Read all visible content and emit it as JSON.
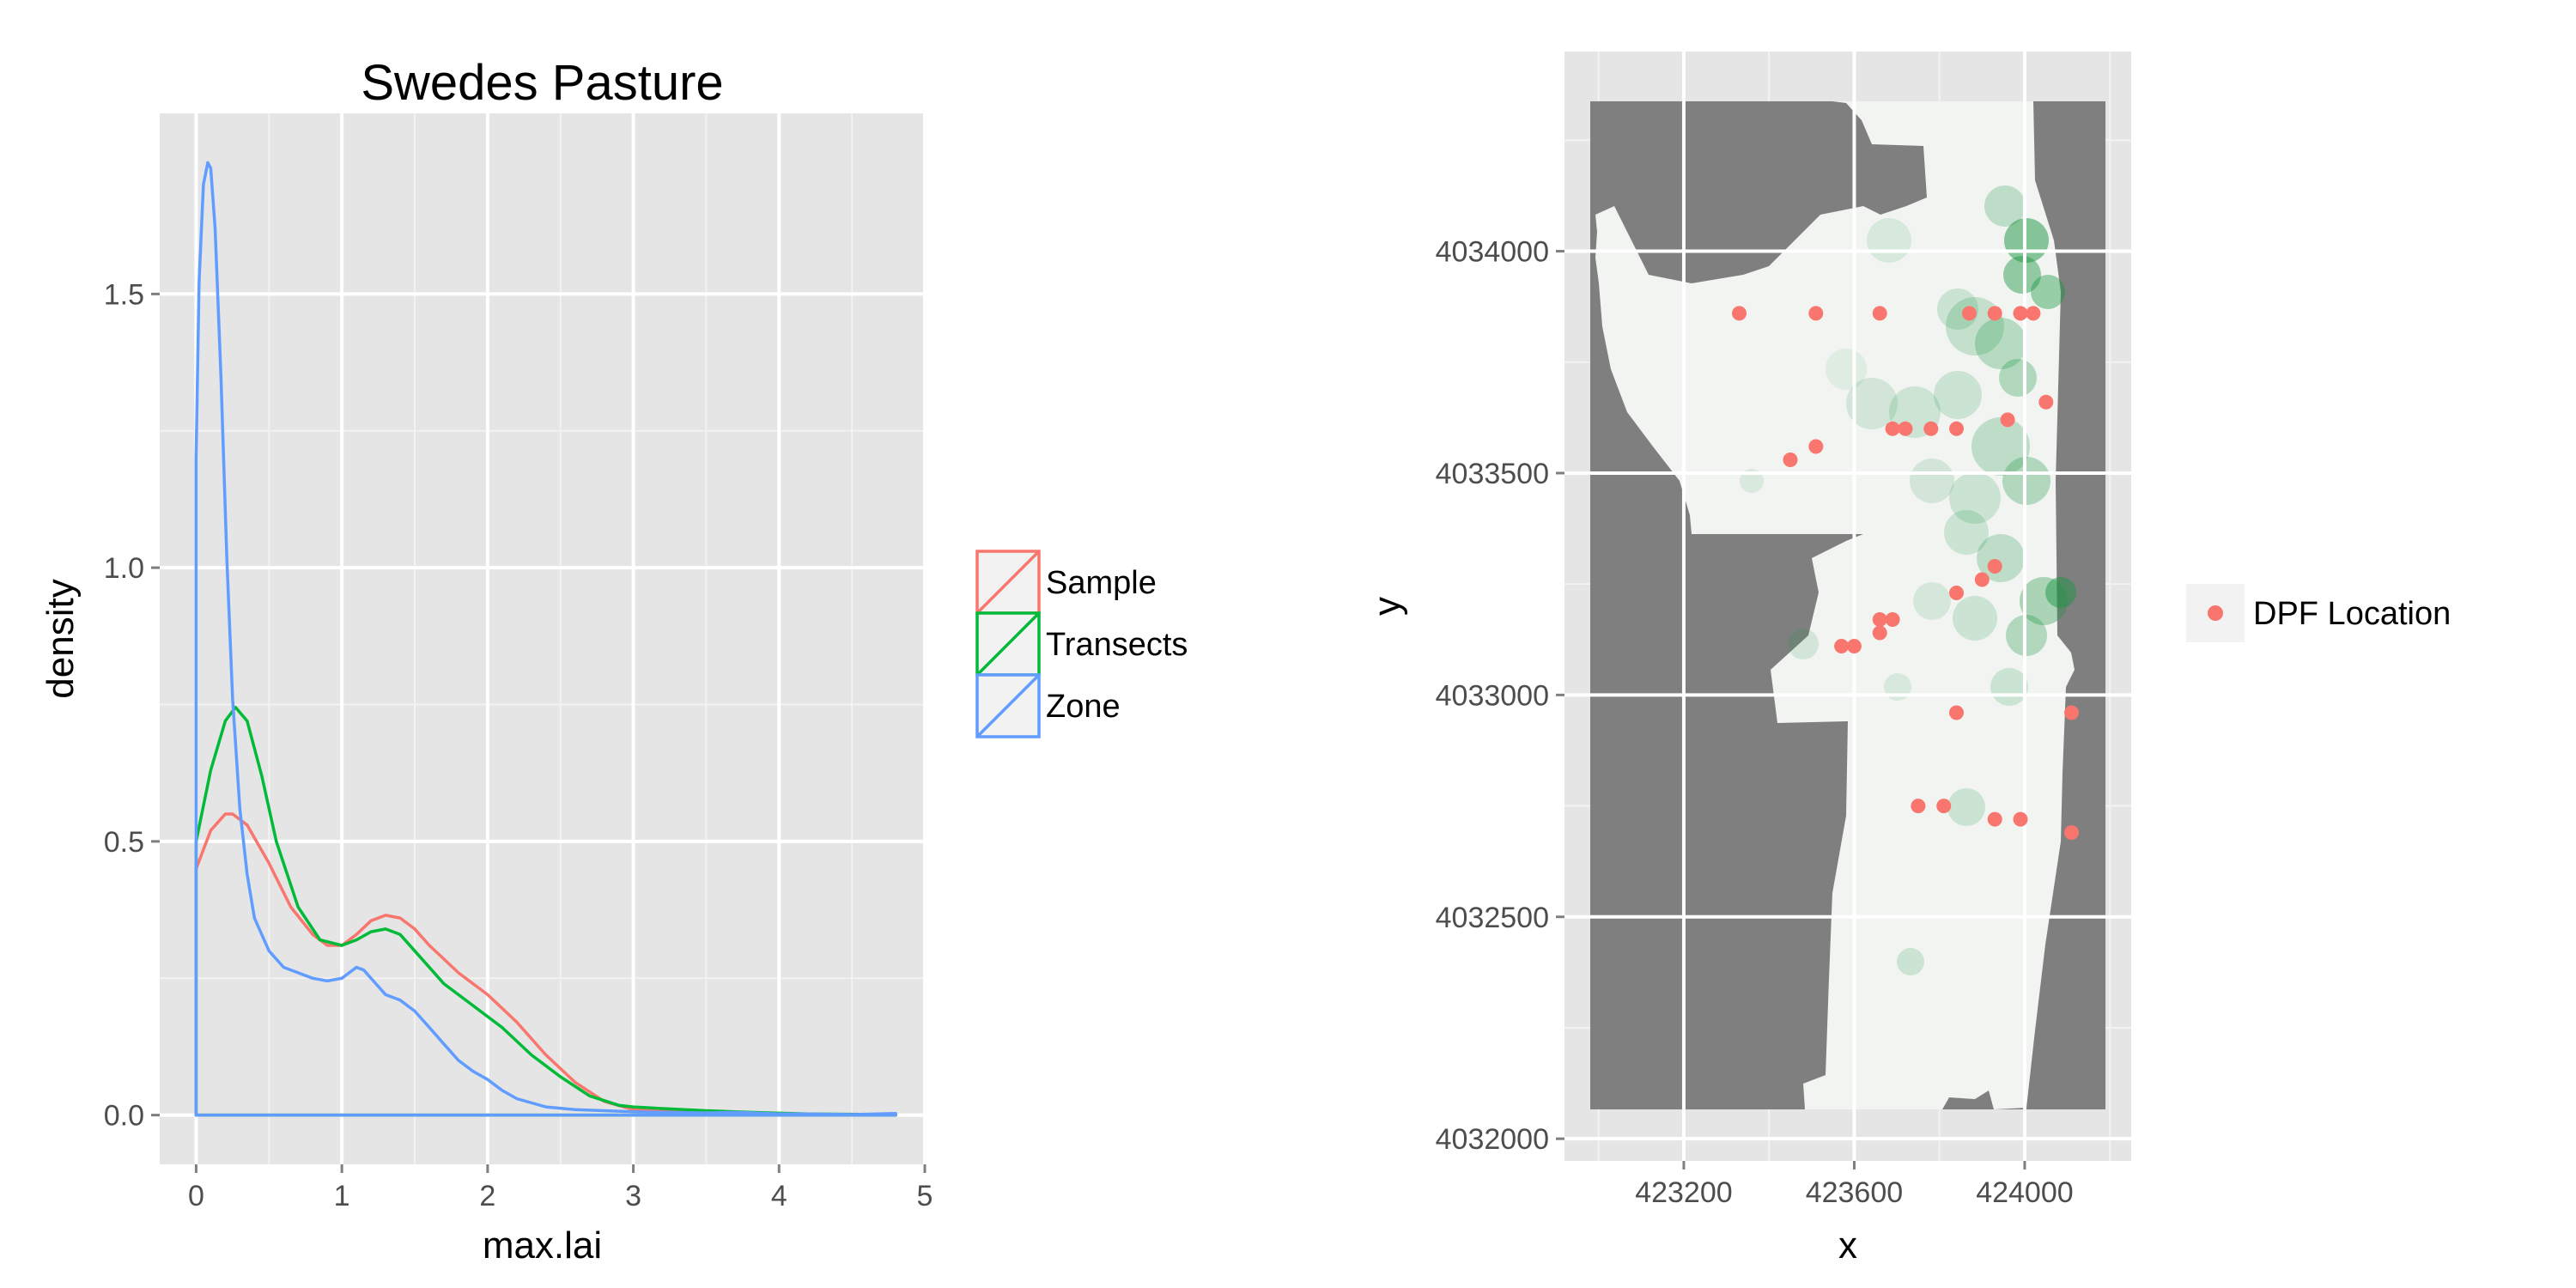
{
  "chart_data": [
    {
      "type": "line",
      "title": "Swedes Pasture",
      "xlabel": "max.lai",
      "ylabel": "density",
      "xlim": [
        -0.25,
        5.0
      ],
      "ylim": [
        -0.09,
        1.83
      ],
      "x_ticks": [
        0,
        1,
        2,
        3,
        4,
        5
      ],
      "y_ticks": [
        0.0,
        0.5,
        1.0,
        1.5
      ],
      "y_tick_labels": [
        "0.0",
        "0.5",
        "1.0",
        "1.5"
      ],
      "grid": true,
      "legend_position": "right",
      "series": [
        {
          "name": "Sample",
          "color": "#F8766D",
          "x": [
            0,
            0.1,
            0.2,
            0.25,
            0.35,
            0.5,
            0.65,
            0.8,
            0.9,
            1.0,
            1.1,
            1.2,
            1.3,
            1.4,
            1.5,
            1.6,
            1.8,
            2.0,
            2.2,
            2.4,
            2.6,
            2.8,
            3.0,
            3.2,
            3.5,
            4.0,
            4.5,
            4.8
          ],
          "y": [
            0.45,
            0.52,
            0.55,
            0.55,
            0.53,
            0.46,
            0.38,
            0.33,
            0.31,
            0.31,
            0.33,
            0.355,
            0.365,
            0.36,
            0.34,
            0.31,
            0.26,
            0.22,
            0.17,
            0.11,
            0.06,
            0.025,
            0.01,
            0.008,
            0.005,
            0.002,
            0.001,
            0.001
          ]
        },
        {
          "name": "Transects",
          "color": "#00BA38",
          "x": [
            0,
            0.1,
            0.2,
            0.27,
            0.35,
            0.45,
            0.55,
            0.7,
            0.85,
            1.0,
            1.1,
            1.2,
            1.3,
            1.4,
            1.5,
            1.7,
            1.9,
            2.1,
            2.3,
            2.5,
            2.7,
            2.9,
            3.0,
            3.2,
            3.5,
            3.8,
            4.2,
            4.8
          ],
          "y": [
            0.5,
            0.63,
            0.72,
            0.745,
            0.72,
            0.62,
            0.5,
            0.38,
            0.32,
            0.31,
            0.32,
            0.335,
            0.34,
            0.33,
            0.3,
            0.24,
            0.2,
            0.16,
            0.11,
            0.07,
            0.035,
            0.018,
            0.015,
            0.012,
            0.008,
            0.005,
            0.002,
            0.001
          ]
        },
        {
          "name": "Zone",
          "color": "#619CFF",
          "x": [
            0,
            0.02,
            0.05,
            0.08,
            0.1,
            0.13,
            0.17,
            0.21,
            0.25,
            0.3,
            0.35,
            0.4,
            0.5,
            0.6,
            0.7,
            0.8,
            0.9,
            1.0,
            1.05,
            1.1,
            1.15,
            1.2,
            1.3,
            1.4,
            1.5,
            1.6,
            1.7,
            1.8,
            1.9,
            2.0,
            2.1,
            2.2,
            2.4,
            2.6,
            2.8,
            3.0,
            3.2,
            3.5,
            3.7,
            4.0,
            4.2,
            4.5,
            4.8
          ],
          "y": [
            1.2,
            1.52,
            1.7,
            1.74,
            1.73,
            1.62,
            1.35,
            1.02,
            0.76,
            0.56,
            0.44,
            0.36,
            0.3,
            0.27,
            0.26,
            0.25,
            0.245,
            0.25,
            0.26,
            0.27,
            0.265,
            0.25,
            0.22,
            0.21,
            0.19,
            0.16,
            0.13,
            0.1,
            0.08,
            0.065,
            0.045,
            0.03,
            0.015,
            0.01,
            0.008,
            0.006,
            0.005,
            0.004,
            0.005,
            0.002,
            0.002,
            0.001,
            0.003
          ]
        }
      ]
    },
    {
      "type": "scatter",
      "title": "",
      "xlabel": "x",
      "ylabel": "y",
      "xlim": [
        422920,
        424250
      ],
      "ylim": [
        4031950,
        4034450
      ],
      "x_ticks": [
        423200,
        423600,
        424000
      ],
      "y_ticks": [
        4032000,
        4032500,
        4033000,
        4033500,
        4034000
      ],
      "grid": true,
      "legend_position": "right",
      "background_raster": {
        "gray_color": "#7f7f7f",
        "base_color": "#f2f4f2",
        "green_color": "#1a9641"
      },
      "series": [
        {
          "name": "DPF Location",
          "color": "#F8766D",
          "points": [
            [
              423330,
              4033860
            ],
            [
              423510,
              4033860
            ],
            [
              423660,
              4033860
            ],
            [
              423870,
              4033860
            ],
            [
              423930,
              4033860
            ],
            [
              423990,
              4033860
            ],
            [
              424020,
              4033860
            ],
            [
              423450,
              4033530
            ],
            [
              423510,
              4033560
            ],
            [
              423690,
              4033600
            ],
            [
              423720,
              4033600
            ],
            [
              423780,
              4033600
            ],
            [
              423840,
              4033600
            ],
            [
              423960,
              4033620
            ],
            [
              424050,
              4033660
            ],
            [
              423840,
              4033230
            ],
            [
              423900,
              4033260
            ],
            [
              423930,
              4033290
            ],
            [
              423660,
              4033170
            ],
            [
              423690,
              4033170
            ],
            [
              423660,
              4033140
            ],
            [
              423570,
              4033110
            ],
            [
              423600,
              4033110
            ],
            [
              423840,
              4032960
            ],
            [
              424110,
              4032960
            ],
            [
              423750,
              4032750
            ],
            [
              423810,
              4032750
            ],
            [
              423930,
              4032720
            ],
            [
              423990,
              4032720
            ],
            [
              424110,
              4032690
            ]
          ]
        }
      ]
    }
  ]
}
